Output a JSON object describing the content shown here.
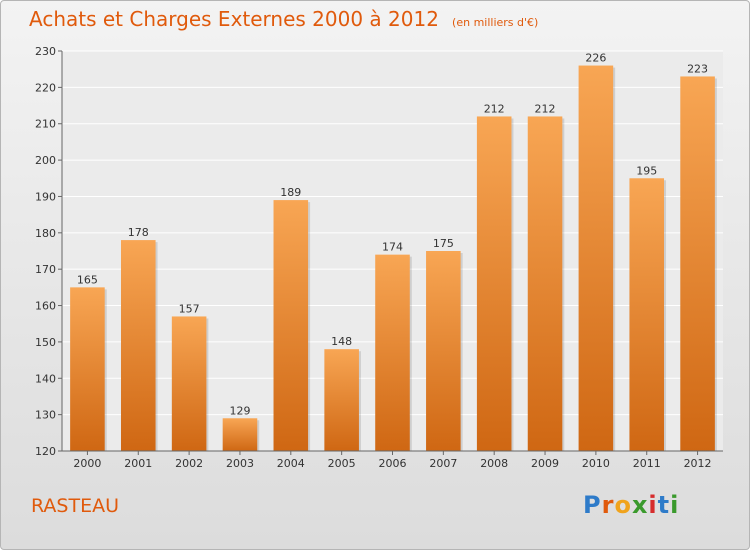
{
  "header": {
    "title": "Achats et Charges Externes 2000 à 2012",
    "subtitle": "(en milliers d'€)"
  },
  "footer": {
    "commune": "RASTEAU"
  },
  "logo": {
    "text": "Proxiti",
    "colors": [
      "#2e7bc9",
      "#e05a0c",
      "#f0a31c",
      "#3a9a2c",
      "#d62c2c",
      "#2e7bc9",
      "#3a9a2c"
    ]
  },
  "colors": {
    "bar_top": "#f8a654",
    "bar_bottom": "#cf6713",
    "accent": "#e05a0c"
  },
  "chart_data": {
    "type": "bar",
    "title": "Achats et Charges Externes 2000 à 2012",
    "subtitle": "(en milliers d'€)",
    "categories": [
      "2000",
      "2001",
      "2002",
      "2003",
      "2004",
      "2005",
      "2006",
      "2007",
      "2008",
      "2009",
      "2010",
      "2011",
      "2012"
    ],
    "values": [
      165,
      178,
      157,
      129,
      189,
      148,
      174,
      175,
      212,
      212,
      226,
      195,
      223
    ],
    "ylim": [
      120,
      230
    ],
    "yticks": [
      120,
      130,
      140,
      150,
      160,
      170,
      180,
      190,
      200,
      210,
      220,
      230
    ],
    "grid": true,
    "legend": "none",
    "data_labels": true
  }
}
